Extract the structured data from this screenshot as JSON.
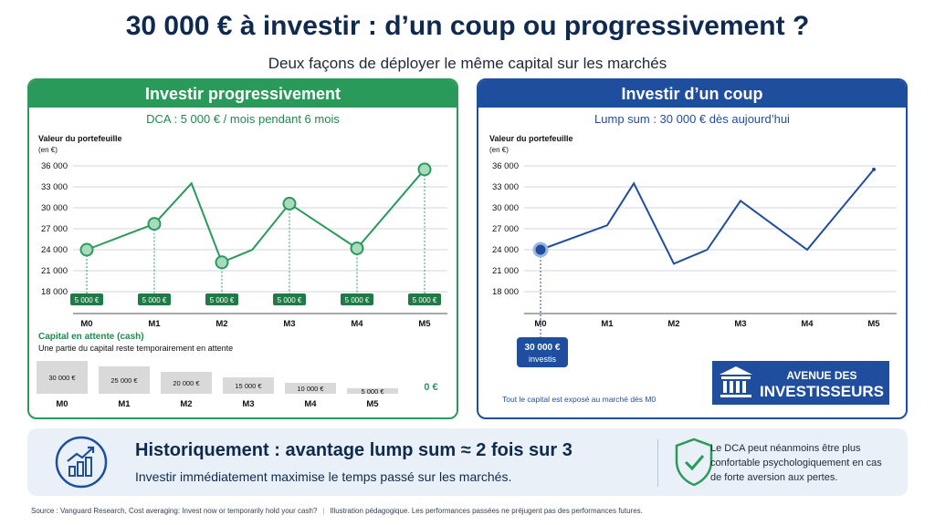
{
  "title": "30 000 € à investir : d’un coup ou progressivement ?",
  "subtitle": "Deux façons de déployer le même capital sur les marchés",
  "left": {
    "header": "Investir progressivement",
    "subheader": "DCA : 5 000 € / mois pendant 6 mois",
    "ylabel1": "Valeur du portefeuille",
    "ylabel2": "(en €)",
    "cash_title": "Capital en attente (cash)",
    "cash_sub": "Une partie du capital reste temporairement en attente"
  },
  "right": {
    "header": "Investir d’un coup",
    "subheader": "Lump sum : 30 000 € dès aujourd’hui",
    "ylabel1": "Valeur du portefeuille",
    "ylabel2": "(en €)",
    "invest_line1": "30 000 €",
    "invest_line2": "investis",
    "note": "Tout le capital est exposé au marché dès M0"
  },
  "logo": {
    "line1": "AVENUE DES",
    "line2": "INVESTISSEURS"
  },
  "bottom": {
    "title": "Historiquement : avantage lump sum ≈ 2 fois sur 3",
    "sub": "Investir immédiatement maximise le temps passé sur les marchés.",
    "note": "Le DCA peut néanmoins être plus confortable psychologiquement en cas de forte aversion aux pertes."
  },
  "source": "Source : Vanguard Research, Cost averaging: Invest now or temporarily hold your cash?",
  "disclaimer": "Illustration pédagogique. Les performances passées ne préjugent pas des performances futures.",
  "colors": {
    "green": "#2a9a5a",
    "blue": "#1f4e9e",
    "navy": "#0f2a4e",
    "cash_bar": "#d9d9d9"
  },
  "chart_data": [
    {
      "type": "line",
      "name": "dca",
      "x": [
        "M0",
        "M1",
        "M2",
        "M3",
        "M4",
        "M5"
      ],
      "yticks": [
        18000,
        21000,
        24000,
        27000,
        30000,
        33000,
        36000
      ],
      "ylim": [
        18000,
        36000
      ],
      "series": [
        {
          "points": [
            {
              "x": 0,
              "y": 24000
            },
            {
              "x": 1,
              "y": 27700
            },
            {
              "x": 1.55,
              "y": 33500
            },
            {
              "x": 2,
              "y": 22200
            },
            {
              "x": 2.45,
              "y": 24000
            },
            {
              "x": 3,
              "y": 30600
            },
            {
              "x": 4,
              "y": 24200
            },
            {
              "x": 5,
              "y": 35500
            }
          ],
          "markers_at": [
            0,
            1,
            2,
            3,
            4,
            5
          ],
          "marker_values": [
            24000,
            27700,
            22200,
            30600,
            24200,
            35500
          ]
        }
      ],
      "contributions": [
        "5 000 €",
        "5 000 €",
        "5 000 €",
        "5 000 €",
        "5 000 €",
        "5 000 €"
      ]
    },
    {
      "type": "bar",
      "name": "cash-waiting",
      "categories": [
        "M0",
        "M1",
        "M2",
        "M3",
        "M4",
        "M5"
      ],
      "values": [
        30000,
        25000,
        20000,
        15000,
        10000,
        5000
      ],
      "labels": [
        "30 000 €",
        "25 000 €",
        "20 000 €",
        "15 000 €",
        "10 000 €",
        "5 000 €"
      ],
      "final_label": "0 €"
    },
    {
      "type": "line",
      "name": "lump-sum",
      "x": [
        "M0",
        "M1",
        "M2",
        "M3",
        "M4",
        "M5"
      ],
      "yticks": [
        18000,
        21000,
        24000,
        27000,
        30000,
        33000,
        36000
      ],
      "ylim": [
        18000,
        36000
      ],
      "series": [
        {
          "points": [
            {
              "x": 0,
              "y": 24000
            },
            {
              "x": 1,
              "y": 27500
            },
            {
              "x": 1.4,
              "y": 33500
            },
            {
              "x": 2,
              "y": 22000
            },
            {
              "x": 2.5,
              "y": 24000
            },
            {
              "x": 3,
              "y": 31000
            },
            {
              "x": 4,
              "y": 24000
            },
            {
              "x": 5,
              "y": 35500
            }
          ],
          "markers_at": [
            0
          ]
        }
      ]
    }
  ]
}
